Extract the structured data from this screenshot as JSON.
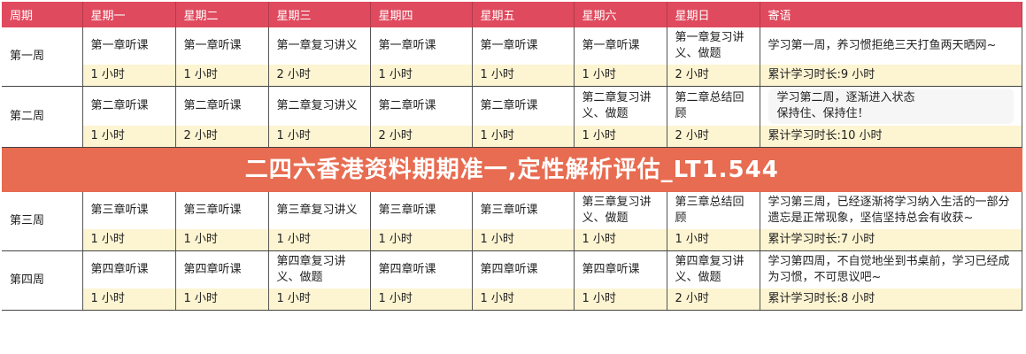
{
  "headers": [
    "周期",
    "星期一",
    "星期二",
    "星期三",
    "星期四",
    "星期五",
    "星期六",
    "星期日",
    "寄语"
  ],
  "weeks": [
    {
      "label": "第一周",
      "tasks": [
        "第一章听课",
        "第一章听课",
        "第一章复习讲义",
        "第一章听课",
        "第一章听课",
        "第一章听课",
        "第一章复习讲义、做题"
      ],
      "note": "学习第一周，养习惯拒绝三天打鱼两天晒网~",
      "hours": [
        "1 小时",
        "1 小时",
        "2 小时",
        "1 小时",
        "1 小时",
        "1 小时",
        "2 小时"
      ],
      "total": "累计学习时长:9 小时"
    },
    {
      "label": "第二周",
      "tasks": [
        "第二章听课",
        "第二章听课",
        "第二章复习讲义",
        "第二章听课",
        "第二章听课",
        "第二章复习讲义、做题",
        "第二章总结回顾"
      ],
      "note": "学习第二周，逐渐进入状态\n保持住、保持住！",
      "hours": [
        "1 小时",
        "2 小时",
        "1 小时",
        "2 小时",
        "1 小时",
        "1 小时",
        "2 小时"
      ],
      "total": "累计学习时长:10 小时"
    },
    {
      "label": "第三周",
      "tasks": [
        "第三章听课",
        "第三章听课",
        "第三章复习讲义",
        "第三章听课",
        "第三章听课",
        "第三章复习讲义、做题",
        "第三章总结回顾"
      ],
      "note": "学习第三周，已经逐渐将学习纳入生活的一部分遗忘是正常现象，坚信坚持总会有收获~",
      "hours": [
        "1 小时",
        "1 小时",
        "1 小时",
        "1 小时",
        "1 小时",
        "1 小时",
        "1 小时"
      ],
      "total": "累计学习时长:7 小时"
    },
    {
      "label": "第四周",
      "tasks": [
        "第四章听课",
        "第四章听课",
        "第四章复习讲义、做题",
        "第四章听课",
        "第四章听课",
        "第四章听课",
        "第四章复习讲义、做题"
      ],
      "note": "学习第四周，不自觉地坐到书桌前，学习已经成为习惯，不可思议吧~",
      "hours": [
        "1 小时",
        "1 小时",
        "1 小时",
        "1 小时",
        "1 小时",
        "1 小时",
        "2 小时"
      ],
      "total": "累计学习时长:8 小时"
    }
  ],
  "banner": "二四六香港资料期期准一,定性解析评估_LT1.544",
  "colors": {
    "header": "#e04a5e",
    "hours_row": "#fdf4d2",
    "banner": "#e45c3e"
  }
}
